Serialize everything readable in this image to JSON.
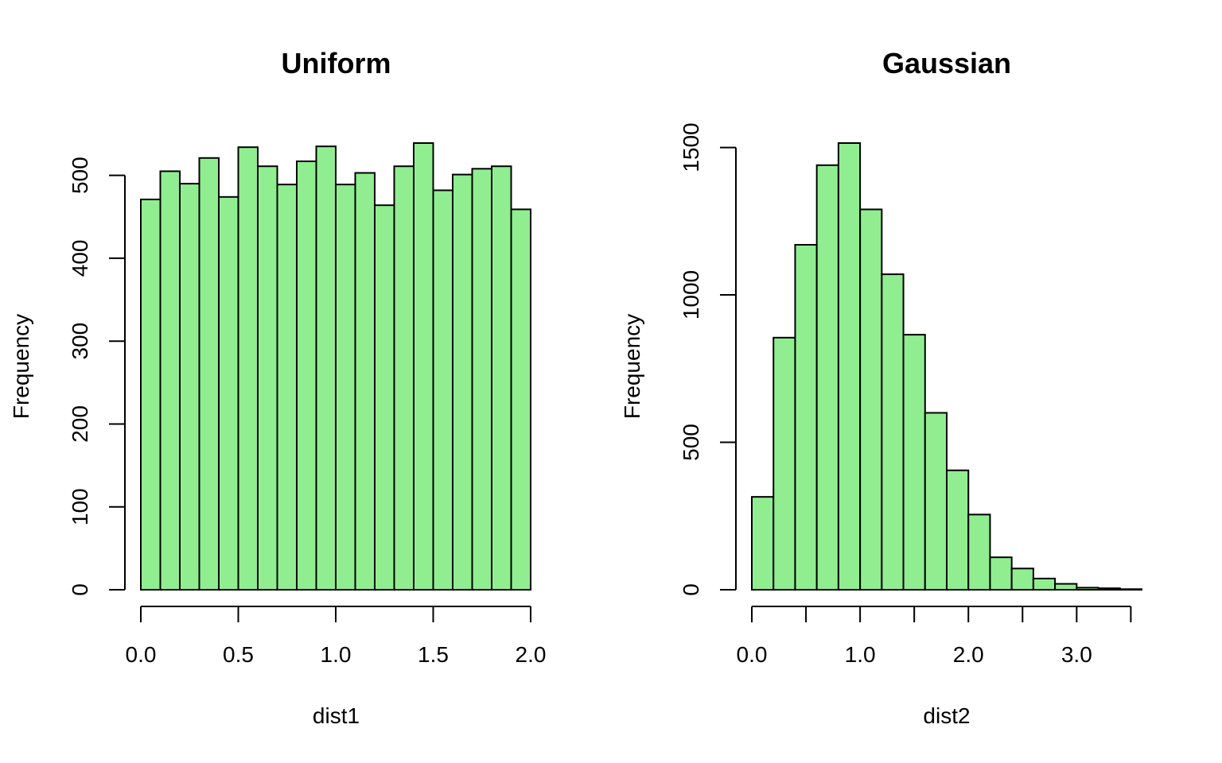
{
  "chart_data": [
    {
      "type": "bar",
      "title": "Uniform",
      "xlabel": "dist1",
      "ylabel": "Frequency",
      "bar_color": "#90EE90",
      "bin_edges": [
        0.0,
        0.1,
        0.2,
        0.3,
        0.4,
        0.5,
        0.6,
        0.7,
        0.8,
        0.9,
        1.0,
        1.1,
        1.2,
        1.3,
        1.4,
        1.5,
        1.6,
        1.7,
        1.8,
        1.9,
        2.0
      ],
      "values": [
        471,
        505,
        490,
        521,
        474,
        534,
        511,
        489,
        517,
        535,
        489,
        503,
        464,
        511,
        539,
        482,
        501,
        508,
        511,
        459
      ],
      "xticks": [
        0.0,
        0.5,
        1.0,
        1.5,
        2.0
      ],
      "xtick_labels": [
        "0.0",
        "0.5",
        "1.0",
        "1.5",
        "2.0"
      ],
      "yticks": [
        0,
        100,
        200,
        300,
        400,
        500
      ],
      "ytick_labels": [
        "0",
        "100",
        "200",
        "300",
        "400",
        "500"
      ],
      "xlim": [
        0,
        2.0
      ],
      "ylim": [
        0,
        539
      ],
      "grid": false
    },
    {
      "type": "bar",
      "title": "Gaussian",
      "xlabel": "dist2",
      "ylabel": "Frequency",
      "bar_color": "#90EE90",
      "bin_edges": [
        0.0,
        0.2,
        0.4,
        0.6,
        0.8,
        1.0,
        1.2,
        1.4,
        1.6,
        1.8,
        2.0,
        2.2,
        2.4,
        2.6,
        2.8,
        3.0,
        3.2,
        3.4,
        3.6
      ],
      "values": [
        315,
        855,
        1170,
        1440,
        1515,
        1290,
        1070,
        865,
        600,
        405,
        255,
        110,
        72,
        38,
        20,
        7,
        5,
        2
      ],
      "xticks": [
        0.0,
        0.5,
        1.0,
        1.5,
        2.0,
        2.5,
        3.0,
        3.5
      ],
      "xtick_labels": [
        "0.0",
        "",
        "1.0",
        "",
        "2.0",
        "",
        "3.0",
        ""
      ],
      "yticks": [
        0,
        500,
        1000,
        1500
      ],
      "ytick_labels": [
        "0",
        "500",
        "1000",
        "1500"
      ],
      "xlim": [
        0,
        3.6
      ],
      "ylim": [
        0,
        1515
      ],
      "grid": false
    }
  ]
}
